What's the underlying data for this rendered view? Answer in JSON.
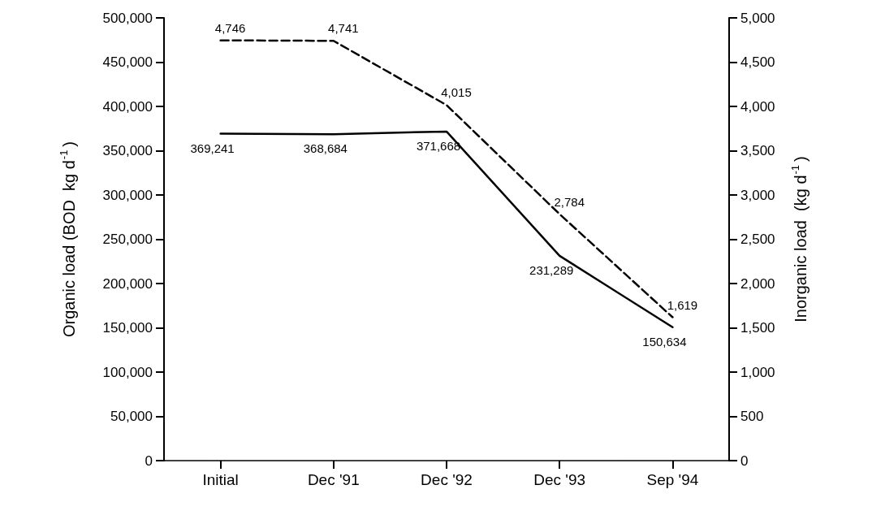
{
  "chart_data": {
    "type": "line",
    "ylabel": "Organic load (BOD  kg d$^{-1}$)",
    "y2label": "Inorganic load  (kg d$^{-1}$)",
    "categories": [
      "Initial",
      "Dec '91",
      "Dec '92",
      "Dec '93",
      "Sep '94"
    ],
    "series": [
      {
        "color": "#000000",
        "line_style": "solid",
        "values": [
          369241,
          368684,
          371668,
          231289,
          150634
        ],
        "value_labels": [
          "369,241",
          "368,684",
          "371,668",
          "231,289",
          "150,634"
        ]
      },
      {
        "color": "#000000",
        "line_style": "dashed",
        "axis": "y2",
        "values": [
          4746,
          4741,
          4015,
          2784,
          1619
        ],
        "value_labels": [
          "4,746",
          "4,741",
          "4,015",
          "2,784",
          "1,619"
        ]
      }
    ],
    "ylim": [
      0,
      500000
    ],
    "yticks": [
      0,
      {
        "value": 50000,
        "label": "50,000"
      },
      {
        "value": 100000,
        "label": "100,000"
      },
      {
        "value": 150000,
        "label": "150,000"
      },
      {
        "value": 200000,
        "label": "200,000"
      },
      {
        "value": 250000,
        "label": "250,000"
      },
      {
        "value": 300000,
        "label": "300,000"
      },
      {
        "value": 350000,
        "label": "350,000"
      },
      {
        "value": 400000,
        "label": "400,000"
      },
      {
        "value": 450000,
        "label": "450,000"
      },
      {
        "value": 500000,
        "label": "500,000"
      }
    ],
    "y2lim": [
      0,
      5000
    ],
    "y2ticks": [
      0,
      500,
      {
        "value": 1000,
        "label": "1,000"
      },
      {
        "value": 1500,
        "label": "1,500"
      },
      {
        "value": 2000,
        "label": "2,000"
      },
      {
        "value": 2500,
        "label": "2,500"
      },
      {
        "value": 3000,
        "label": "3,000"
      },
      {
        "value": 3500,
        "label": "3,500"
      },
      {
        "value": 4000,
        "label": "4,000"
      },
      {
        "value": 4500,
        "label": "4,500"
      },
      {
        "value": 5000,
        "label": "5,000"
      }
    ],
    "grid": false,
    "marker": "none"
  }
}
